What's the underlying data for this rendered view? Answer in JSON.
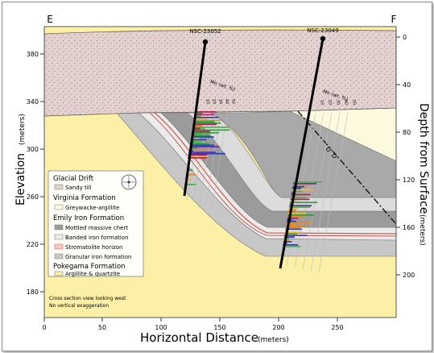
{
  "section": {
    "left_label": "E",
    "right_label": "F",
    "x_axis_label": "Horizontal Distance",
    "x_axis_unit": "(meters)",
    "left_axis_label": "Elevation",
    "left_axis_unit": "(meters)",
    "right_axis_label": "Depth from Surface",
    "right_axis_unit": "(meters)",
    "x_ticks": [
      "0",
      "50",
      "100",
      "150",
      "200",
      "250"
    ],
    "elevation_ticks": [
      "380",
      "340",
      "300",
      "260",
      "220",
      "180"
    ],
    "depth_ticks": [
      "0",
      "40",
      "80",
      "120",
      "160",
      "200"
    ]
  },
  "drillholes": [
    {
      "id": "NSC-23052",
      "mn_label": "Mn (wt. %)",
      "mn_ticks": [
        "10",
        "20",
        "30",
        "40",
        "50"
      ]
    },
    {
      "id": "NSC-23049",
      "mn_label": "Mn (wt. %)",
      "mn_ticks": [
        "10",
        "20",
        "30",
        "40",
        "50"
      ]
    }
  ],
  "fault_symbols": [
    "U",
    "D"
  ],
  "legend": {
    "groups": [
      {
        "heading": "Glacial Drift",
        "items": [
          {
            "label": "Sandy till",
            "color": "#e3d2cf"
          }
        ]
      },
      {
        "heading": "Virginia Formation",
        "items": [
          {
            "label": "Greywacke-argillite",
            "color": "#fdf9df"
          }
        ]
      },
      {
        "heading": "Emily Iron Formation",
        "items": [
          {
            "label": "Mottled massive chert",
            "color": "#9b9b9b"
          },
          {
            "label": "Banded iron formation",
            "color": "#ebebeb"
          },
          {
            "label": "Stromatolite horizon",
            "color": "#f6c9c3"
          },
          {
            "label": "Granular iron formation",
            "color": "#c7c7c7"
          }
        ]
      },
      {
        "heading": "Pokegama Formation",
        "items": [
          {
            "label": "Argillite & quartzite",
            "color": "#fcefa6"
          }
        ]
      }
    ]
  },
  "notes": [
    "Cross section view looking west",
    "No vertical exaggeration"
  ],
  "colors": {
    "pokegama": "#fcefa6",
    "virginia": "#fdf9df",
    "drift": "#e3d2cf",
    "mottled": "#9b9b9b",
    "banded": "#ebebeb",
    "granular": "#c7c7c7",
    "stromatolite": "#d45f52",
    "mn_bars": [
      "#e08a2b",
      "#2f9e3a",
      "#1f3fbf",
      "#c2185b",
      "#6a2ea0",
      "#f2b53a",
      "#42b44a"
    ]
  }
}
